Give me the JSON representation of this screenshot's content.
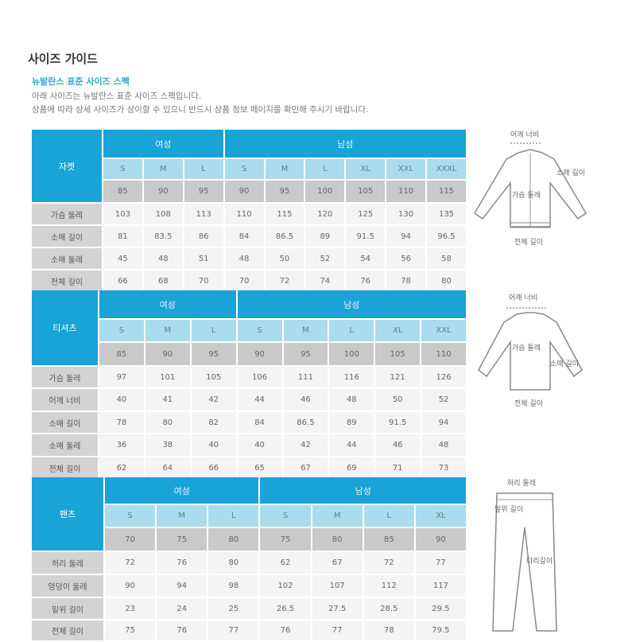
{
  "header": {
    "title": "사이즈 가이드",
    "subtitle": "뉴발란스 표준 사이즈 스펙",
    "desc1": "아래 사이즈는 뉴발란스 표준 사이즈 스펙입니다.",
    "desc2": "상품에 따라 상세 사이즈가 상이할 수 있으니 반드시 상품 정보 페이지를 확인해 주시기 바랍니다."
  },
  "colors": {
    "header_blue": "#19a3d6",
    "size_blue": "#a9dcef",
    "number_gray": "#c9c9c9",
    "label_gray": "#d3d3d3"
  },
  "tables": [
    {
      "category": "자켓",
      "women_label": "여성",
      "men_label": "남성",
      "women_sizes": [
        "S",
        "M",
        "L"
      ],
      "men_sizes": [
        "S",
        "M",
        "L",
        "XL",
        "XXL",
        "XXXL"
      ],
      "women_numbers": [
        "85",
        "90",
        "95"
      ],
      "men_numbers": [
        "90",
        "95",
        "100",
        "105",
        "110",
        "115"
      ],
      "rows": [
        {
          "label": "가슴 둘레",
          "values": [
            "103",
            "108",
            "113",
            "110",
            "115",
            "120",
            "125",
            "130",
            "135"
          ]
        },
        {
          "label": "소매 길이",
          "values": [
            "81",
            "83.5",
            "86",
            "84",
            "86.5",
            "89",
            "91.5",
            "94",
            "96.5"
          ]
        },
        {
          "label": "소매 둘레",
          "values": [
            "45",
            "48",
            "51",
            "48",
            "50",
            "52",
            "54",
            "56",
            "58"
          ]
        },
        {
          "label": "전체 길이",
          "values": [
            "66",
            "68",
            "70",
            "70",
            "72",
            "74",
            "76",
            "78",
            "80"
          ]
        }
      ]
    },
    {
      "category": "티셔츠",
      "women_label": "여성",
      "men_label": "남성",
      "women_sizes": [
        "S",
        "M",
        "L"
      ],
      "men_sizes": [
        "S",
        "M",
        "L",
        "XL",
        "XXL"
      ],
      "women_numbers": [
        "85",
        "90",
        "95"
      ],
      "men_numbers": [
        "90",
        "95",
        "100",
        "105",
        "110"
      ],
      "rows": [
        {
          "label": "가슴 둘레",
          "values": [
            "97",
            "101",
            "105",
            "106",
            "111",
            "116",
            "121",
            "126"
          ]
        },
        {
          "label": "어깨 너비",
          "values": [
            "40",
            "41",
            "42",
            "44",
            "46",
            "48",
            "50",
            "52"
          ]
        },
        {
          "label": "소매 길이",
          "values": [
            "78",
            "80",
            "82",
            "84",
            "86.5",
            "89",
            "91.5",
            "94"
          ]
        },
        {
          "label": "소매 둘레",
          "values": [
            "36",
            "38",
            "40",
            "40",
            "42",
            "44",
            "46",
            "48"
          ]
        },
        {
          "label": "전체 길이",
          "values": [
            "62",
            "64",
            "66",
            "65",
            "67",
            "69",
            "71",
            "73"
          ]
        }
      ]
    },
    {
      "category": "팬츠",
      "women_label": "여성",
      "men_label": "남성",
      "women_sizes": [
        "S",
        "M",
        "L"
      ],
      "men_sizes": [
        "S",
        "M",
        "L",
        "XL"
      ],
      "women_numbers": [
        "70",
        "75",
        "80"
      ],
      "men_numbers": [
        "75",
        "80",
        "85",
        "90"
      ],
      "rows": [
        {
          "label": "허리 둘레",
          "values": [
            "72",
            "76",
            "80",
            "62",
            "67",
            "72",
            "77"
          ]
        },
        {
          "label": "엉덩이 둘레",
          "values": [
            "90",
            "94",
            "98",
            "102",
            "107",
            "112",
            "117"
          ]
        },
        {
          "label": "밑위 길이",
          "values": [
            "23",
            "24",
            "25",
            "26.5",
            "27.5",
            "28.5",
            "29.5"
          ]
        },
        {
          "label": "전체 길이",
          "values": [
            "75",
            "76",
            "77",
            "76",
            "77",
            "78",
            "79.5"
          ]
        }
      ]
    }
  ],
  "illustrations": {
    "jacket": {
      "shoulder": "어깨 너비",
      "sleeve": "소매 길이",
      "chest": "가슴 둘레",
      "length": "전체 길이"
    },
    "tshirt": {
      "shoulder": "어깨 너비",
      "chest": "가슴 둘레",
      "sleeve": "소매 길이",
      "length": "전체 길이"
    },
    "pants": {
      "waist": "허리 둘레",
      "rise": "밑위 길이",
      "leg": "다리길이"
    }
  }
}
